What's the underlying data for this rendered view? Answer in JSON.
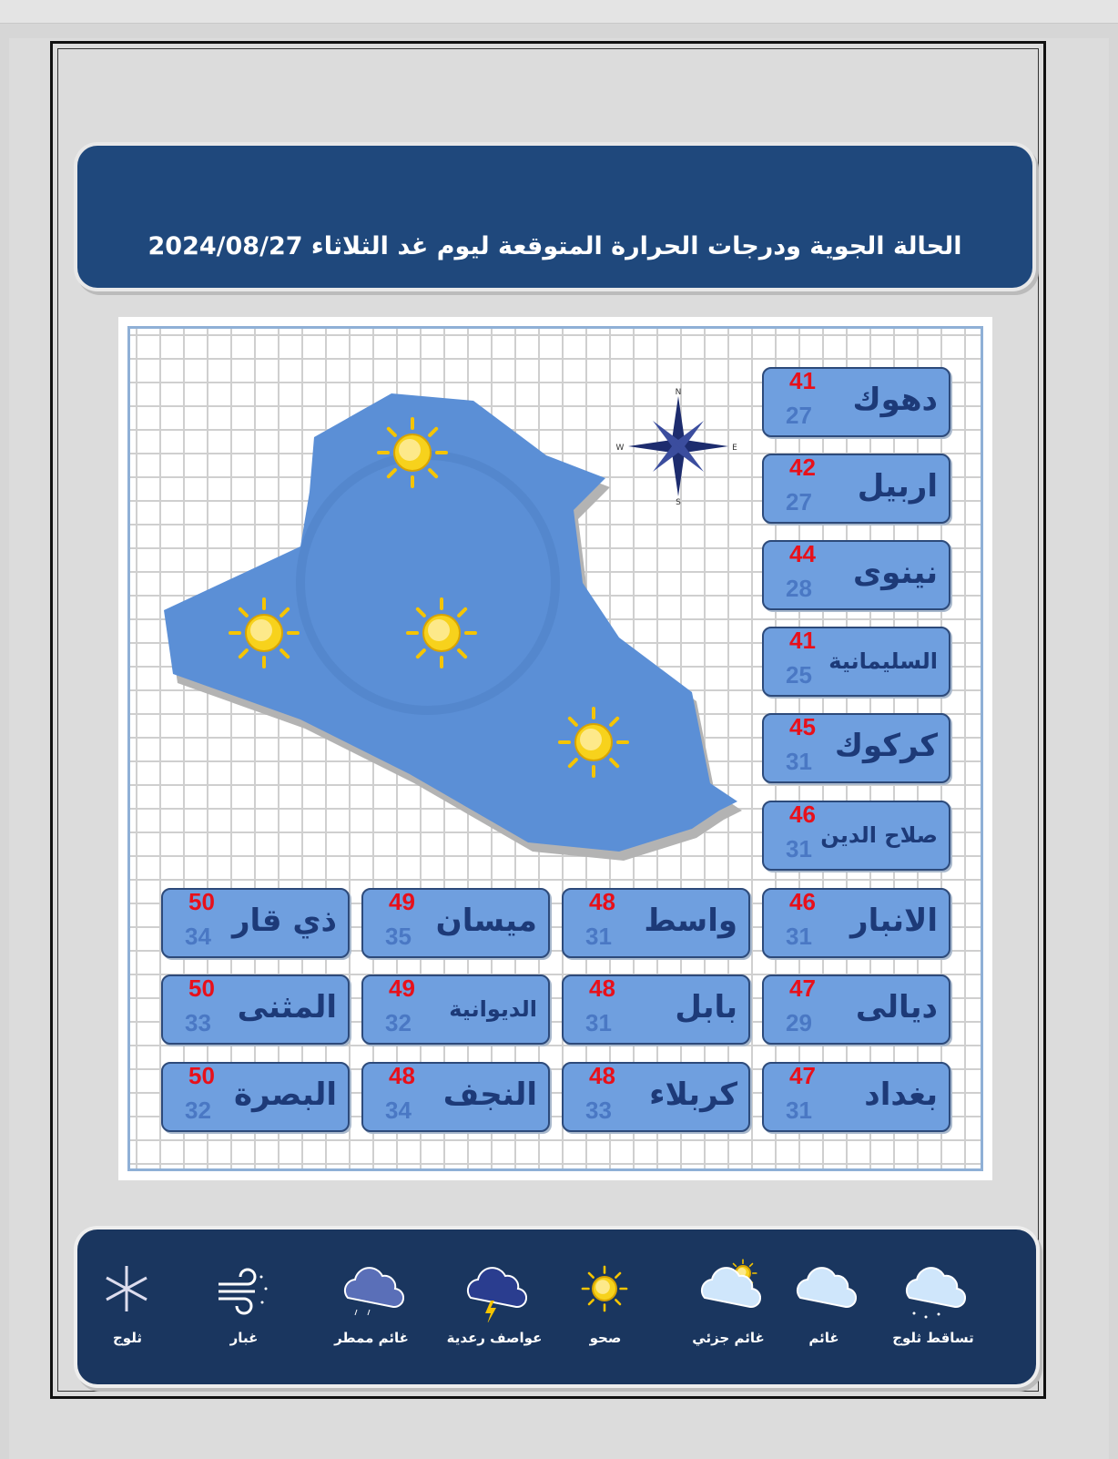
{
  "title": "الحالة الجوية ودرجات الحرارة المتوقعة ليوم غد الثلاثاء 2024/08/27",
  "compass": {
    "n": "N",
    "s": "S",
    "e": "E",
    "w": "W"
  },
  "map_icons": [
    "sunny-icon",
    "sunny-icon",
    "sunny-icon",
    "sunny-icon"
  ],
  "colors": {
    "header": "#1f487c",
    "legend": "#1a365f",
    "box": "#6f9fdf",
    "max": "#e8101a",
    "min": "#4a78c4",
    "map": "#5b8fd6"
  },
  "cities": [
    {
      "name": "دهوك",
      "max": "41",
      "min": "27"
    },
    {
      "name": "اربيل",
      "max": "42",
      "min": "27"
    },
    {
      "name": "نينوى",
      "max": "44",
      "min": "28"
    },
    {
      "name": "السليمانية",
      "max": "41",
      "min": "25"
    },
    {
      "name": "كركوك",
      "max": "45",
      "min": "31"
    },
    {
      "name": "صلاح الدين",
      "max": "46",
      "min": "31"
    },
    {
      "name": "الانبار",
      "max": "46",
      "min": "31"
    },
    {
      "name": "واسط",
      "max": "48",
      "min": "31"
    },
    {
      "name": "ميسان",
      "max": "49",
      "min": "35"
    },
    {
      "name": "ذي قار",
      "max": "50",
      "min": "34"
    },
    {
      "name": "ديالى",
      "max": "47",
      "min": "29"
    },
    {
      "name": "بابل",
      "max": "48",
      "min": "31"
    },
    {
      "name": "الديوانية",
      "max": "49",
      "min": "32"
    },
    {
      "name": "المثنى",
      "max": "50",
      "min": "33"
    },
    {
      "name": "بغداد",
      "max": "47",
      "min": "31"
    },
    {
      "name": "كربلاء",
      "max": "48",
      "min": "33"
    },
    {
      "name": "النجف",
      "max": "48",
      "min": "34"
    },
    {
      "name": "البصرة",
      "max": "50",
      "min": "32"
    }
  ],
  "legend": [
    {
      "label": "تساقط ثلوج",
      "icon": "snowfall-cloud-icon"
    },
    {
      "label": "غائم",
      "icon": "cloudy-icon"
    },
    {
      "label": "غائم جزئي",
      "icon": "partly-cloudy-icon"
    },
    {
      "label": "صحو",
      "icon": "sunny-icon"
    },
    {
      "label": "عواصف رعدية",
      "icon": "thunderstorm-icon"
    },
    {
      "label": "غائم ممطر",
      "icon": "rainy-cloud-icon"
    },
    {
      "label": "غبار",
      "icon": "dust-wind-icon"
    },
    {
      "label": "ثلوج",
      "icon": "snowflake-icon"
    }
  ]
}
